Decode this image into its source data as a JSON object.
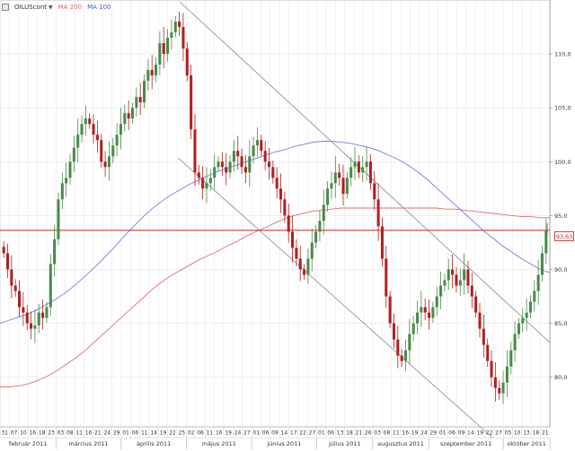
{
  "legend": {
    "symbol": "OILUScont",
    "ma200_label": "MA 200",
    "ma100_label": "MA 100"
  },
  "last_price_label": "93,63",
  "colors": {
    "up": "#4a8a4a",
    "down": "#b02020",
    "ma100": "#7080e0",
    "ma200": "#e07070",
    "hline": "#cc2222",
    "channel": "#888888",
    "grid": "#e6e6e6"
  },
  "chart_data": {
    "type": "candlestick",
    "y_ticks": [
      "80,0",
      "85,0",
      "90,0",
      "95,0",
      "100,0",
      "105,0",
      "110,0"
    ],
    "y_tick_values": [
      80,
      85,
      90,
      95,
      100,
      105,
      110
    ],
    "ylim": [
      75.4,
      115
    ],
    "horizontal_line": 93.63,
    "day_labels": [
      "31",
      "07",
      "10",
      "16",
      "18",
      "23",
      "03",
      "08",
      "11",
      "16",
      "21",
      "24",
      "29",
      "01",
      "06",
      "11",
      "14",
      "19",
      "22",
      "25",
      "02",
      "06",
      "11",
      "16",
      "19",
      "24",
      "27",
      "01",
      "06",
      "09",
      "14",
      "17",
      "22",
      "27",
      "01",
      "06",
      "13",
      "18",
      "21",
      "26",
      "03",
      "08",
      "11",
      "16",
      "19",
      "24",
      "29",
      "01",
      "06",
      "09",
      "14",
      "19",
      "22",
      "27",
      "05",
      "10",
      "13",
      "18",
      "21"
    ],
    "month_labels": [
      "február 2011",
      "március 2011",
      "április 2011",
      "május 2011",
      "június 2011",
      "július 2011",
      "augusztus 2011",
      "szeptember 2011",
      "október 2011"
    ],
    "closes": [
      91.5,
      90.0,
      88.5,
      88.0,
      86.5,
      86.0,
      85.0,
      84.5,
      84.8,
      86.0,
      85.5,
      86.5,
      90.5,
      92.8,
      96.5,
      98.0,
      98.5,
      100.0,
      101.3,
      102.5,
      103.5,
      104.0,
      103.5,
      102.5,
      102.0,
      100.0,
      99.5,
      100.5,
      101.5,
      102.5,
      103.5,
      104.5,
      104.0,
      105.0,
      106.0,
      105.5,
      107.5,
      108.5,
      108.0,
      109.0,
      111.0,
      110.0,
      111.5,
      112.0,
      113.0,
      112.5,
      110.5,
      108.0,
      103.0,
      99.0,
      98.5,
      97.5,
      98.0,
      98.5,
      99.5,
      100.0,
      99.5,
      99.0,
      100.0,
      101.0,
      100.5,
      99.5,
      99.0,
      100.5,
      101.5,
      102.0,
      101.0,
      100.0,
      99.5,
      98.5,
      97.5,
      96.5,
      95.0,
      93.5,
      92.0,
      91.0,
      90.0,
      89.5,
      91.0,
      92.5,
      93.5,
      94.5,
      96.0,
      97.5,
      98.0,
      99.0,
      98.5,
      97.0,
      98.5,
      99.5,
      100.0,
      99.0,
      99.5,
      100.0,
      98.0,
      96.5,
      94.0,
      91.0,
      87.5,
      85.0,
      83.5,
      82.0,
      81.5,
      82.5,
      84.0,
      85.0,
      86.0,
      86.5,
      86.0,
      85.5,
      86.5,
      87.5,
      88.5,
      89.0,
      90.0,
      89.5,
      88.5,
      89.0,
      90.0,
      88.5,
      87.5,
      86.0,
      84.5,
      83.0,
      81.5,
      80.0,
      79.0,
      78.5,
      79.5,
      81.0,
      82.5,
      84.0,
      85.0,
      85.5,
      86.0,
      87.0,
      88.0,
      89.5,
      91.5,
      93.63
    ],
    "ma100": [
      85.0,
      85.3,
      85.6,
      85.9,
      86.3,
      86.8,
      87.3,
      87.9,
      88.6,
      89.4,
      90.2,
      91.1,
      92.0,
      93.0,
      93.9,
      94.8,
      95.6,
      96.3,
      96.9,
      97.4,
      97.9,
      98.3,
      98.7,
      99.1,
      99.4,
      99.7,
      100.0,
      100.3,
      100.6,
      100.9,
      101.1,
      101.4,
      101.6,
      101.8,
      101.9,
      101.9,
      101.8,
      101.7,
      101.5,
      101.3,
      101.0,
      100.6,
      100.2,
      99.7,
      99.1,
      98.4,
      97.6,
      96.8,
      96.0,
      95.2,
      94.4,
      93.6,
      92.9,
      92.2,
      91.6,
      91.0,
      90.5,
      90.0,
      89.7
    ],
    "ma200": [
      79.1,
      79.1,
      79.2,
      79.4,
      79.7,
      80.1,
      80.6,
      81.2,
      81.8,
      82.5,
      83.3,
      84.1,
      84.9,
      85.7,
      86.5,
      87.3,
      88.1,
      88.8,
      89.4,
      89.9,
      90.4,
      90.9,
      91.3,
      91.7,
      92.2,
      92.6,
      93.1,
      93.5,
      93.9,
      94.3,
      94.7,
      95.0,
      95.2,
      95.4,
      95.5,
      95.6,
      95.7,
      95.7,
      95.7,
      95.7,
      95.7,
      95.7,
      95.7,
      95.7,
      95.7,
      95.7,
      95.7,
      95.6,
      95.6,
      95.5,
      95.4,
      95.3,
      95.2,
      95.1,
      95.0,
      94.9,
      94.9,
      94.8,
      94.8
    ]
  }
}
